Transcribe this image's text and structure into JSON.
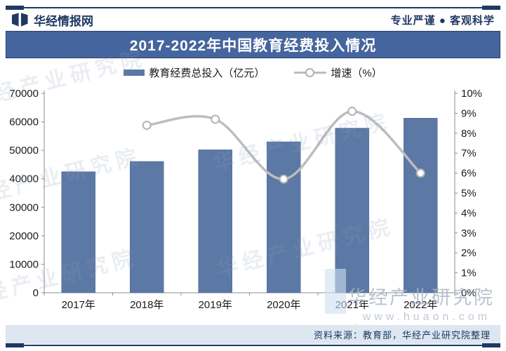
{
  "header": {
    "brand": "华经情报网",
    "slogan": "专业严谨 ● 客观科学"
  },
  "title": "2017-2022年中国教育经费投入情况",
  "legend": {
    "bars": "教育经费总投入（亿元）",
    "line": "增速（%）"
  },
  "chart_data": {
    "type": "bar",
    "title": "2017-2022年中国教育经费投入情况",
    "categories": [
      "2017年",
      "2018年",
      "2019年",
      "2020年",
      "2021年",
      "2022年"
    ],
    "series": [
      {
        "name": "教育经费总投入（亿元）",
        "type": "bar",
        "axis": "left",
        "color": "#5c78a5",
        "values": [
          42500,
          46100,
          50200,
          53000,
          57800,
          61300
        ]
      },
      {
        "name": "增速（%）",
        "type": "line",
        "axis": "right",
        "color": "#bdbdbd",
        "marker_fill": "#ffffff",
        "marker_stroke": "#b3b3b3",
        "values": [
          null,
          8.4,
          8.7,
          5.7,
          9.1,
          6.0
        ]
      }
    ],
    "left_axis": {
      "min": 0,
      "max": 70000,
      "step": 10000,
      "suffix": ""
    },
    "right_axis": {
      "min": 0,
      "max": 10,
      "step": 1,
      "suffix": "%"
    },
    "grid": false,
    "legend_position": "top",
    "xlabel": "",
    "ylabel": ""
  },
  "watermarks": {
    "stamp": "华经产业研究院",
    "brand": "华经产业研究院",
    "url": "www.huaon.com"
  },
  "source": {
    "text": "资料来源：教育部，华经产业研究院整理"
  },
  "colors": {
    "navy": "#1f3864",
    "band_blue": "#45659e",
    "bar_blue": "#5c78a5",
    "line_gray": "#bdbdbd",
    "footer_band": "#dde6f1"
  }
}
